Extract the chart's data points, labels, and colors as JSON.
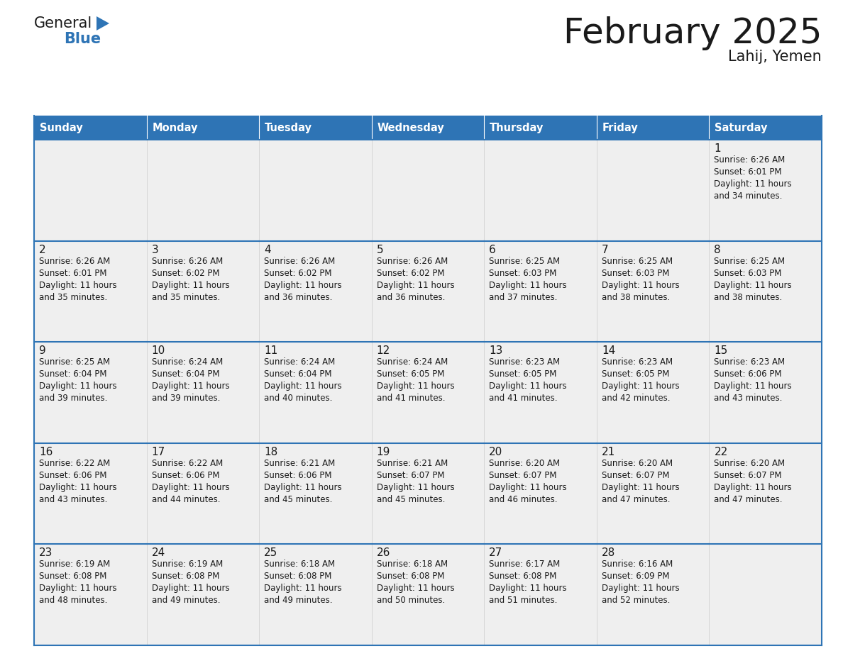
{
  "title": "February 2025",
  "subtitle": "Lahij, Yemen",
  "header_bg_color": "#2E74B5",
  "header_text_color": "#FFFFFF",
  "cell_bg_color": "#EFEFEF",
  "cell_bg_white": "#FFFFFF",
  "border_color": "#2E74B5",
  "title_color": "#1a1a1a",
  "subtitle_color": "#1a1a1a",
  "day_num_color": "#1a1a1a",
  "cell_text_color": "#1a1a1a",
  "days_of_week": [
    "Sunday",
    "Monday",
    "Tuesday",
    "Wednesday",
    "Thursday",
    "Friday",
    "Saturday"
  ],
  "weeks": [
    [
      {
        "day": 0,
        "info": ""
      },
      {
        "day": 0,
        "info": ""
      },
      {
        "day": 0,
        "info": ""
      },
      {
        "day": 0,
        "info": ""
      },
      {
        "day": 0,
        "info": ""
      },
      {
        "day": 0,
        "info": ""
      },
      {
        "day": 1,
        "info": "Sunrise: 6:26 AM\nSunset: 6:01 PM\nDaylight: 11 hours\nand 34 minutes."
      }
    ],
    [
      {
        "day": 2,
        "info": "Sunrise: 6:26 AM\nSunset: 6:01 PM\nDaylight: 11 hours\nand 35 minutes."
      },
      {
        "day": 3,
        "info": "Sunrise: 6:26 AM\nSunset: 6:02 PM\nDaylight: 11 hours\nand 35 minutes."
      },
      {
        "day": 4,
        "info": "Sunrise: 6:26 AM\nSunset: 6:02 PM\nDaylight: 11 hours\nand 36 minutes."
      },
      {
        "day": 5,
        "info": "Sunrise: 6:26 AM\nSunset: 6:02 PM\nDaylight: 11 hours\nand 36 minutes."
      },
      {
        "day": 6,
        "info": "Sunrise: 6:25 AM\nSunset: 6:03 PM\nDaylight: 11 hours\nand 37 minutes."
      },
      {
        "day": 7,
        "info": "Sunrise: 6:25 AM\nSunset: 6:03 PM\nDaylight: 11 hours\nand 38 minutes."
      },
      {
        "day": 8,
        "info": "Sunrise: 6:25 AM\nSunset: 6:03 PM\nDaylight: 11 hours\nand 38 minutes."
      }
    ],
    [
      {
        "day": 9,
        "info": "Sunrise: 6:25 AM\nSunset: 6:04 PM\nDaylight: 11 hours\nand 39 minutes."
      },
      {
        "day": 10,
        "info": "Sunrise: 6:24 AM\nSunset: 6:04 PM\nDaylight: 11 hours\nand 39 minutes."
      },
      {
        "day": 11,
        "info": "Sunrise: 6:24 AM\nSunset: 6:04 PM\nDaylight: 11 hours\nand 40 minutes."
      },
      {
        "day": 12,
        "info": "Sunrise: 6:24 AM\nSunset: 6:05 PM\nDaylight: 11 hours\nand 41 minutes."
      },
      {
        "day": 13,
        "info": "Sunrise: 6:23 AM\nSunset: 6:05 PM\nDaylight: 11 hours\nand 41 minutes."
      },
      {
        "day": 14,
        "info": "Sunrise: 6:23 AM\nSunset: 6:05 PM\nDaylight: 11 hours\nand 42 minutes."
      },
      {
        "day": 15,
        "info": "Sunrise: 6:23 AM\nSunset: 6:06 PM\nDaylight: 11 hours\nand 43 minutes."
      }
    ],
    [
      {
        "day": 16,
        "info": "Sunrise: 6:22 AM\nSunset: 6:06 PM\nDaylight: 11 hours\nand 43 minutes."
      },
      {
        "day": 17,
        "info": "Sunrise: 6:22 AM\nSunset: 6:06 PM\nDaylight: 11 hours\nand 44 minutes."
      },
      {
        "day": 18,
        "info": "Sunrise: 6:21 AM\nSunset: 6:06 PM\nDaylight: 11 hours\nand 45 minutes."
      },
      {
        "day": 19,
        "info": "Sunrise: 6:21 AM\nSunset: 6:07 PM\nDaylight: 11 hours\nand 45 minutes."
      },
      {
        "day": 20,
        "info": "Sunrise: 6:20 AM\nSunset: 6:07 PM\nDaylight: 11 hours\nand 46 minutes."
      },
      {
        "day": 21,
        "info": "Sunrise: 6:20 AM\nSunset: 6:07 PM\nDaylight: 11 hours\nand 47 minutes."
      },
      {
        "day": 22,
        "info": "Sunrise: 6:20 AM\nSunset: 6:07 PM\nDaylight: 11 hours\nand 47 minutes."
      }
    ],
    [
      {
        "day": 23,
        "info": "Sunrise: 6:19 AM\nSunset: 6:08 PM\nDaylight: 11 hours\nand 48 minutes."
      },
      {
        "day": 24,
        "info": "Sunrise: 6:19 AM\nSunset: 6:08 PM\nDaylight: 11 hours\nand 49 minutes."
      },
      {
        "day": 25,
        "info": "Sunrise: 6:18 AM\nSunset: 6:08 PM\nDaylight: 11 hours\nand 49 minutes."
      },
      {
        "day": 26,
        "info": "Sunrise: 6:18 AM\nSunset: 6:08 PM\nDaylight: 11 hours\nand 50 minutes."
      },
      {
        "day": 27,
        "info": "Sunrise: 6:17 AM\nSunset: 6:08 PM\nDaylight: 11 hours\nand 51 minutes."
      },
      {
        "day": 28,
        "info": "Sunrise: 6:16 AM\nSunset: 6:09 PM\nDaylight: 11 hours\nand 52 minutes."
      },
      {
        "day": 0,
        "info": ""
      }
    ]
  ],
  "logo_text_general": "General",
  "logo_text_blue": "Blue",
  "logo_color_general": "#1a1a1a",
  "logo_color_blue": "#2E74B5",
  "logo_triangle_color": "#2E74B5"
}
